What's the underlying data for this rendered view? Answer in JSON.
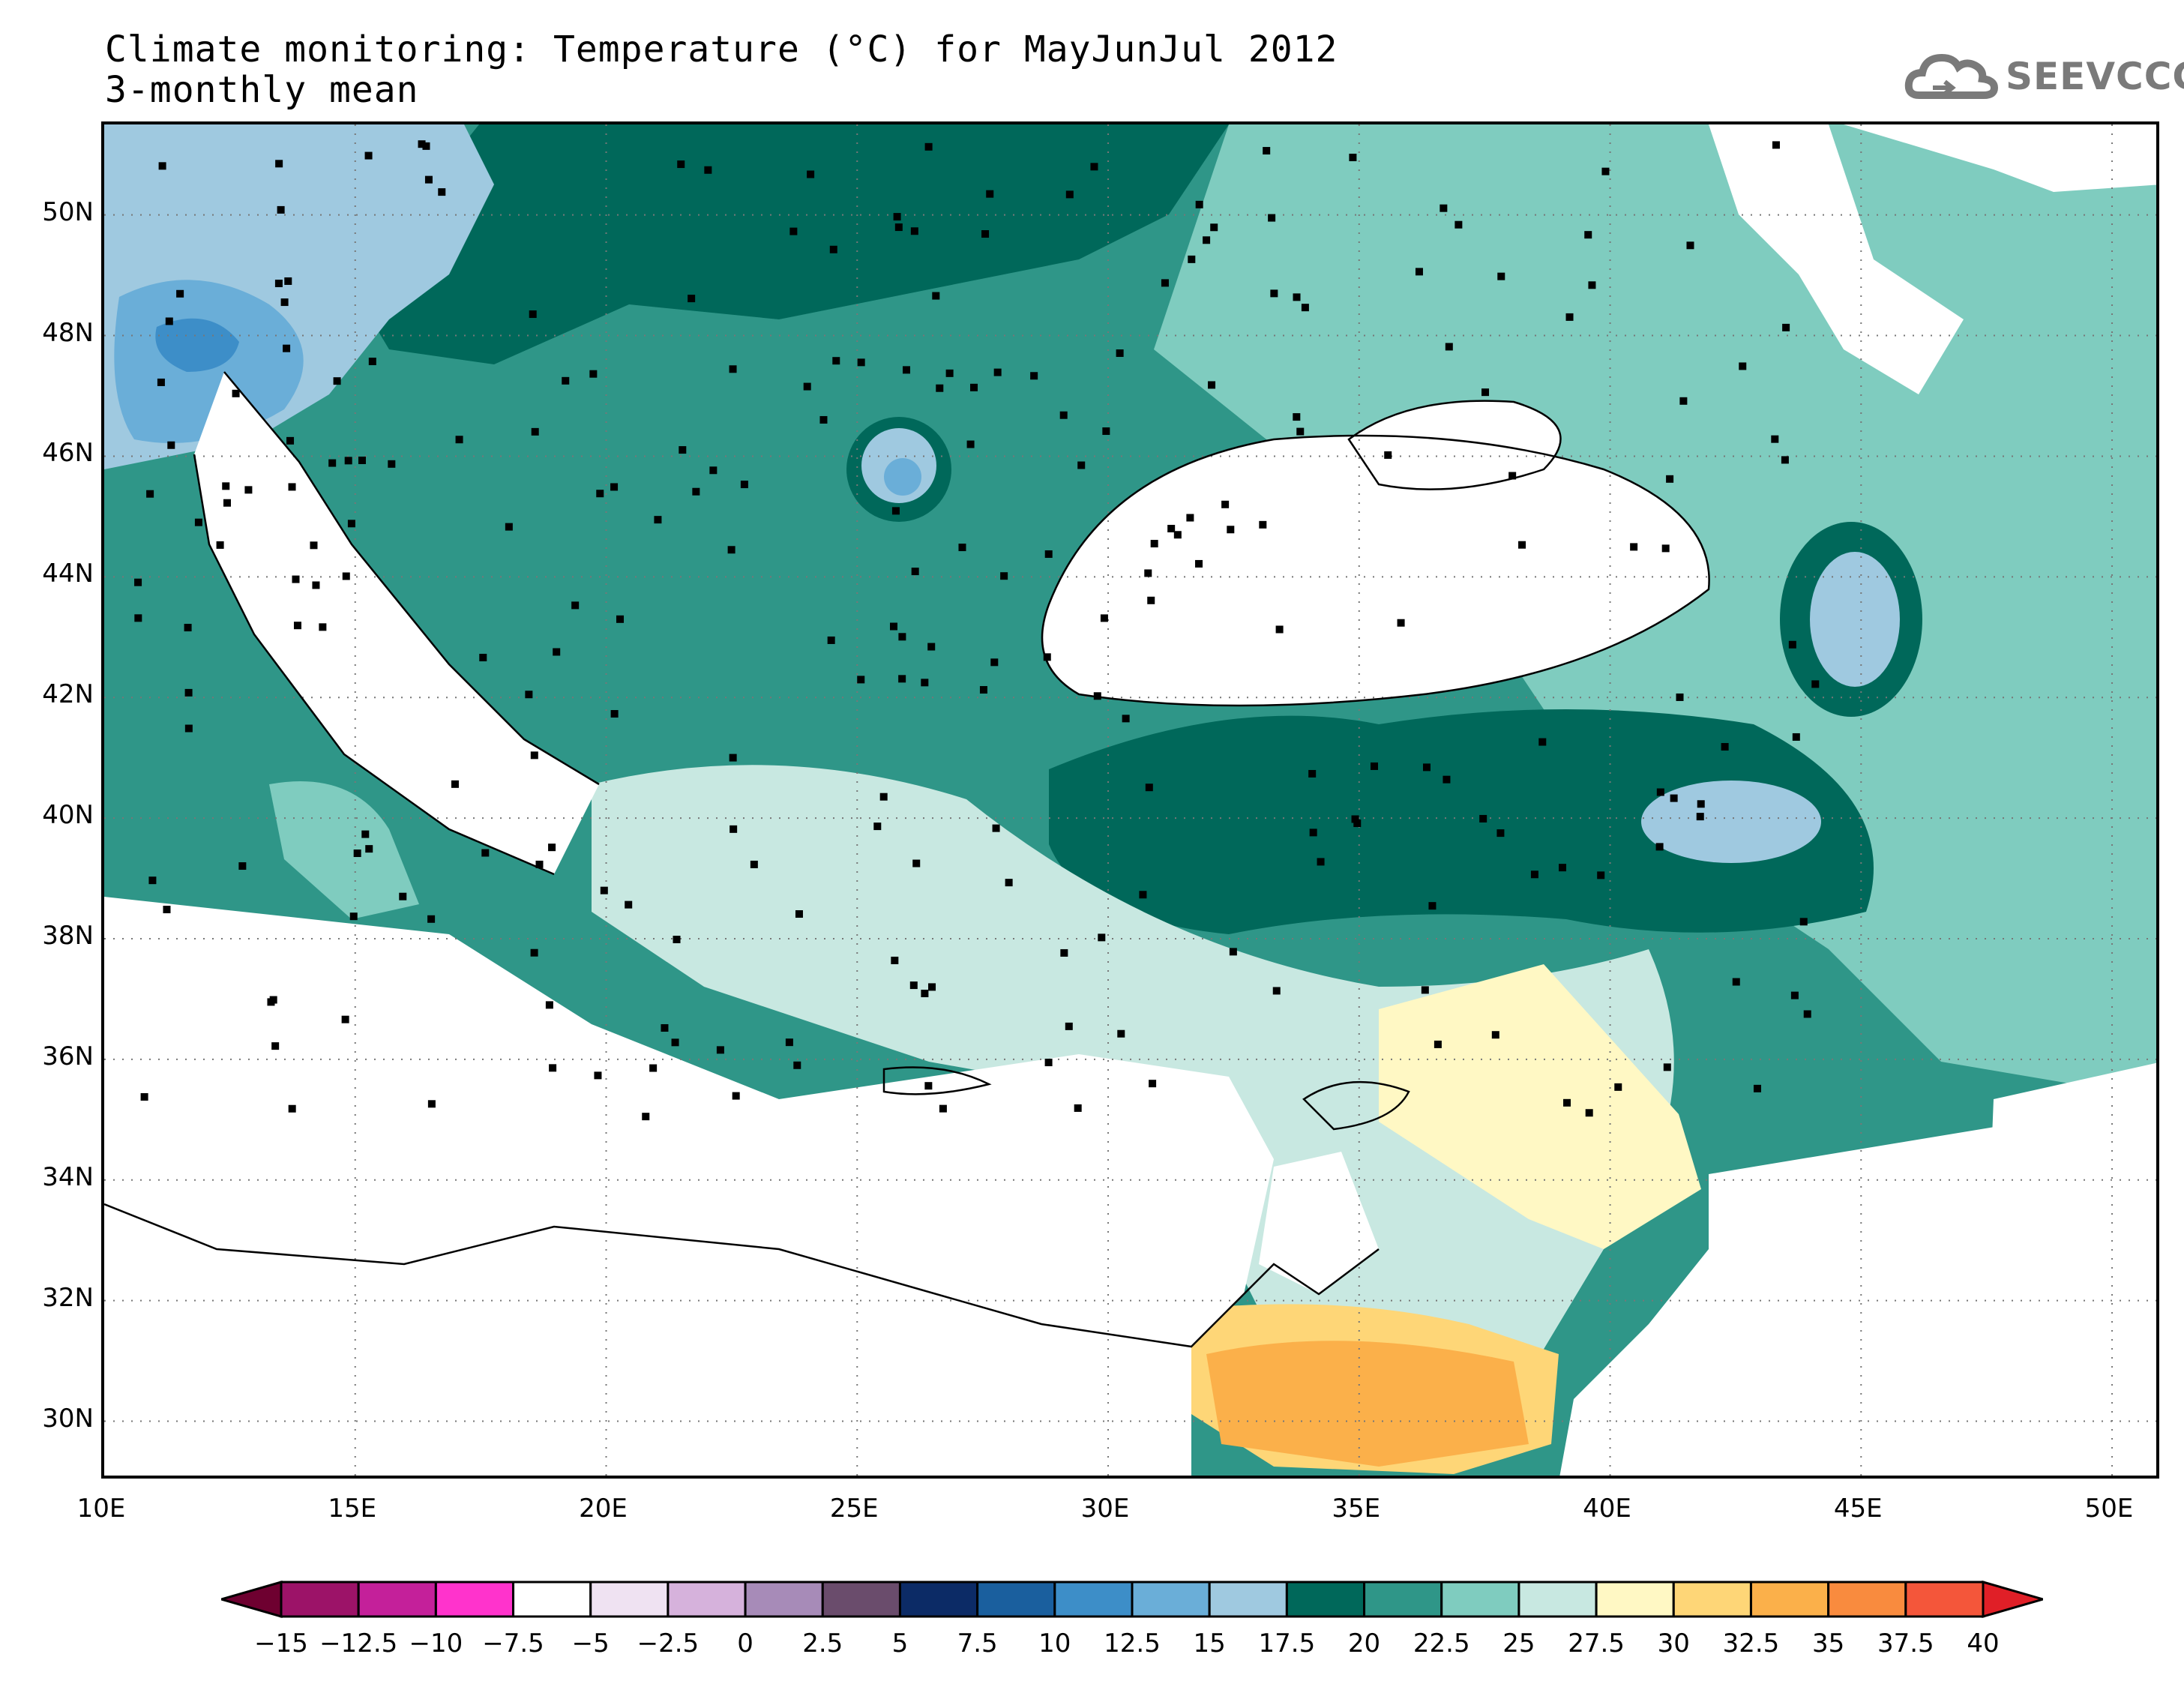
{
  "title": {
    "line1": "Climate monitoring: Temperature (°C) for MayJunJul 2012",
    "line2": "3-monthly mean"
  },
  "logo": {
    "text": "SEEVCCC",
    "icon": "cloud-icon",
    "color": "#7a7a7a"
  },
  "map": {
    "lon_range": [
      10,
      51
    ],
    "lat_range": [
      29,
      51.5
    ],
    "y_ticks": [
      "50N",
      "48N",
      "46N",
      "44N",
      "42N",
      "40N",
      "38N",
      "36N",
      "34N",
      "32N",
      "30N"
    ],
    "x_ticks": [
      "10E",
      "15E",
      "20E",
      "25E",
      "30E",
      "35E",
      "40E",
      "45E",
      "50E"
    ],
    "grid": "dotted",
    "station_marker": "square"
  },
  "colorbar": {
    "labels": [
      "-15",
      "-12.5",
      "-10",
      "-7.5",
      "-5",
      "-2.5",
      "0",
      "2.5",
      "5",
      "7.5",
      "10",
      "12.5",
      "15",
      "17.5",
      "20",
      "22.5",
      "25",
      "27.5",
      "30",
      "32.5",
      "35",
      "37.5",
      "40"
    ],
    "colors": [
      "#6e0030",
      "#9c1368",
      "#c4209a",
      "#ff33cc",
      "#ffffff",
      "#efe2f2",
      "#d6b2dc",
      "#a78bb8",
      "#6a4c6c",
      "#0c2b66",
      "#1a5f9e",
      "#3d8ec8",
      "#6aaed8",
      "#9fc9e0",
      "#00685a",
      "#2f9688",
      "#7fccbf",
      "#c8e8e1",
      "#fff8c4",
      "#fed677",
      "#fbb04a",
      "#f98b3e",
      "#f4563a",
      "#e01f27"
    ]
  }
}
